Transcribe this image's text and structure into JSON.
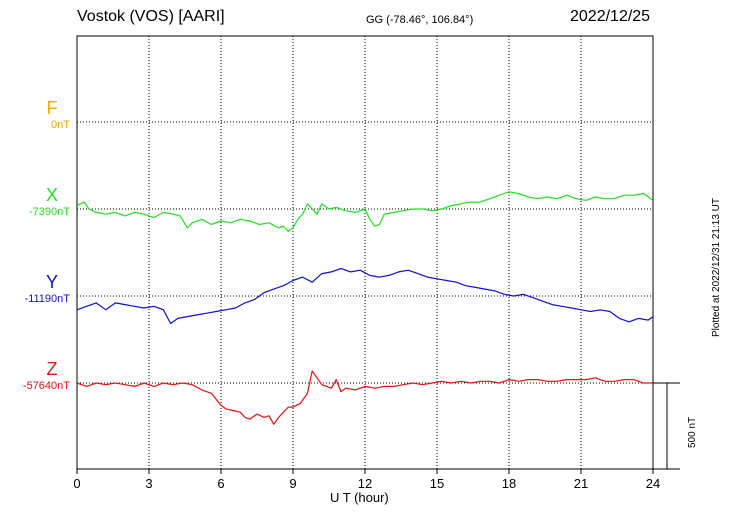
{
  "header": {
    "station": "Vostok (VOS)  [AARI]",
    "coords": "GG (-78.46°, 106.84°)",
    "date": "2022/12/25"
  },
  "footer": {
    "plotted": "Plotted at 2022/12/31 21:13 UT"
  },
  "chart_data": {
    "type": "line",
    "xlabel": "U T (hour)",
    "xlim": [
      0,
      24
    ],
    "xticks": [
      "0",
      "3",
      "6",
      "9",
      "12",
      "15",
      "18",
      "21",
      "24"
    ],
    "scale_bar": "500 nT",
    "scale_bar_nT": 500,
    "y_offset_range_nT": [
      -250,
      250
    ],
    "grid": true,
    "series": [
      {
        "name": "F",
        "baseline_label": "0nT",
        "color": "#f5a800",
        "x": [],
        "deviation_nT": []
      },
      {
        "name": "X",
        "baseline_label": "-7390nT",
        "color": "#22e022",
        "x": [
          0,
          0.3,
          0.5,
          0.8,
          1.2,
          1.6,
          2.0,
          2.4,
          2.8,
          3.2,
          3.6,
          4.0,
          4.3,
          4.6,
          4.8,
          5.2,
          5.6,
          6.0,
          6.4,
          6.8,
          7.2,
          7.6,
          8.0,
          8.4,
          8.6,
          8.8,
          9.0,
          9.2,
          9.4,
          9.6,
          9.8,
          10.0,
          10.2,
          10.5,
          10.8,
          11.2,
          11.6,
          12.0,
          12.2,
          12.4,
          12.6,
          12.8,
          13.2,
          13.6,
          14.0,
          14.4,
          14.8,
          15.2,
          15.6,
          16.0,
          16.4,
          16.8,
          17.2,
          17.6,
          18.0,
          18.4,
          18.8,
          19.2,
          19.6,
          20.0,
          20.4,
          20.8,
          21.2,
          21.6,
          22.0,
          22.4,
          22.8,
          23.2,
          23.6,
          24.0
        ],
        "deviation_nT": [
          20,
          40,
          0,
          -20,
          -30,
          -20,
          -40,
          -20,
          -30,
          -50,
          -20,
          -30,
          -40,
          -110,
          -80,
          -60,
          -90,
          -70,
          -80,
          -60,
          -70,
          -90,
          -80,
          -110,
          -100,
          -130,
          -110,
          -60,
          -30,
          30,
          0,
          -30,
          30,
          0,
          10,
          -10,
          -20,
          0,
          -60,
          -100,
          -90,
          -30,
          -20,
          -10,
          0,
          0,
          -10,
          0,
          20,
          30,
          40,
          40,
          60,
          80,
          100,
          90,
          70,
          60,
          70,
          60,
          80,
          60,
          50,
          70,
          60,
          60,
          80,
          80,
          90,
          50
        ]
      },
      {
        "name": "Y",
        "baseline_label": "-11190nT",
        "color": "#1010d0",
        "x": [
          0,
          0.4,
          0.8,
          1.2,
          1.6,
          2.0,
          2.4,
          2.8,
          3.2,
          3.6,
          3.9,
          4.2,
          4.6,
          5.0,
          5.4,
          5.8,
          6.2,
          6.6,
          7.0,
          7.4,
          7.8,
          8.2,
          8.6,
          9.0,
          9.4,
          9.8,
          10.2,
          10.6,
          11.0,
          11.4,
          11.8,
          12.2,
          12.6,
          13.0,
          13.4,
          13.8,
          14.2,
          14.6,
          15.0,
          15.4,
          15.8,
          16.2,
          16.6,
          17.0,
          17.4,
          17.8,
          18.2,
          18.6,
          19.0,
          19.4,
          19.8,
          20.2,
          20.6,
          21.0,
          21.4,
          21.8,
          22.2,
          22.6,
          23.0,
          23.4,
          23.8,
          24.0
        ],
        "deviation_nT": [
          -80,
          -60,
          -40,
          -80,
          -40,
          -50,
          -60,
          -70,
          -60,
          -80,
          -160,
          -130,
          -120,
          -110,
          -100,
          -90,
          -80,
          -70,
          -40,
          -20,
          20,
          40,
          60,
          90,
          110,
          80,
          130,
          140,
          160,
          140,
          150,
          120,
          110,
          120,
          140,
          150,
          130,
          110,
          100,
          90,
          80,
          60,
          50,
          40,
          30,
          10,
          0,
          10,
          -10,
          -30,
          -50,
          -60,
          -70,
          -80,
          -90,
          -80,
          -90,
          -130,
          -150,
          -130,
          -140,
          -120
        ]
      },
      {
        "name": "Z",
        "baseline_label": "-57640nT",
        "color": "#e81010",
        "x": [
          0,
          0.4,
          0.8,
          1.2,
          1.6,
          2.0,
          2.4,
          2.8,
          3.2,
          3.6,
          4.0,
          4.4,
          4.8,
          5.2,
          5.6,
          6.0,
          6.2,
          6.5,
          6.8,
          7.0,
          7.2,
          7.5,
          7.8,
          8.0,
          8.2,
          8.4,
          8.6,
          8.8,
          9.0,
          9.3,
          9.6,
          9.8,
          10.0,
          10.2,
          10.4,
          10.6,
          10.8,
          11.0,
          11.2,
          11.6,
          12.0,
          12.4,
          12.8,
          13.2,
          13.6,
          14.0,
          14.4,
          14.8,
          15.2,
          15.6,
          16.0,
          16.4,
          16.8,
          17.2,
          17.6,
          18.0,
          18.4,
          18.8,
          19.2,
          19.6,
          20.0,
          20.4,
          20.8,
          21.2,
          21.6,
          22.0,
          22.4,
          22.8,
          23.2,
          23.6,
          24.0
        ],
        "deviation_nT": [
          0,
          -20,
          0,
          -10,
          0,
          -10,
          -20,
          0,
          -20,
          0,
          -10,
          0,
          -10,
          -40,
          -60,
          -130,
          -150,
          -160,
          -170,
          -200,
          -210,
          -180,
          -200,
          -190,
          -240,
          -200,
          -170,
          -140,
          -140,
          -120,
          -60,
          70,
          30,
          -10,
          -20,
          -30,
          20,
          -50,
          -30,
          -40,
          -20,
          -30,
          -20,
          -20,
          -10,
          0,
          -10,
          0,
          10,
          0,
          10,
          0,
          10,
          10,
          0,
          20,
          10,
          20,
          20,
          10,
          10,
          20,
          20,
          20,
          30,
          10,
          10,
          20,
          20,
          0,
          0
        ]
      }
    ]
  }
}
